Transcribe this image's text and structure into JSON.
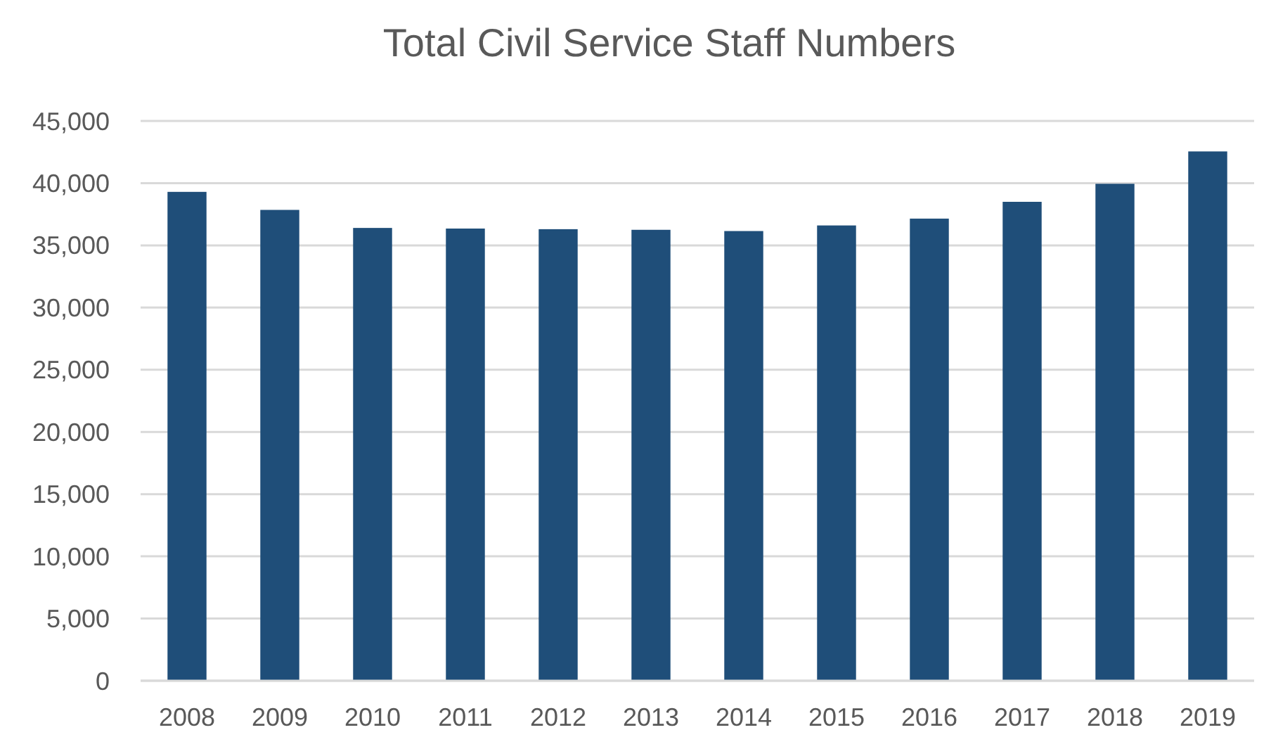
{
  "chart_data": {
    "type": "bar",
    "title": "Total Civil Service Staff Numbers",
    "categories": [
      "2008",
      "2009",
      "2010",
      "2011",
      "2012",
      "2013",
      "2014",
      "2015",
      "2016",
      "2017",
      "2018",
      "2019"
    ],
    "values": [
      39300,
      37850,
      36400,
      36350,
      36300,
      36250,
      36150,
      36600,
      37150,
      38500,
      39950,
      42550
    ],
    "color": "#1f4e79",
    "ylim": [
      0,
      45000
    ],
    "yticks": [
      {
        "value": 0,
        "label": "0"
      },
      {
        "value": 5000,
        "label": "5,000"
      },
      {
        "value": 10000,
        "label": "10,000"
      },
      {
        "value": 15000,
        "label": "15,000"
      },
      {
        "value": 20000,
        "label": "20,000"
      },
      {
        "value": 25000,
        "label": "25,000"
      },
      {
        "value": 30000,
        "label": "30,000"
      },
      {
        "value": 35000,
        "label": "35,000"
      },
      {
        "value": 40000,
        "label": "40,000"
      },
      {
        "value": 45000,
        "label": "45,000"
      }
    ],
    "grid": true
  }
}
